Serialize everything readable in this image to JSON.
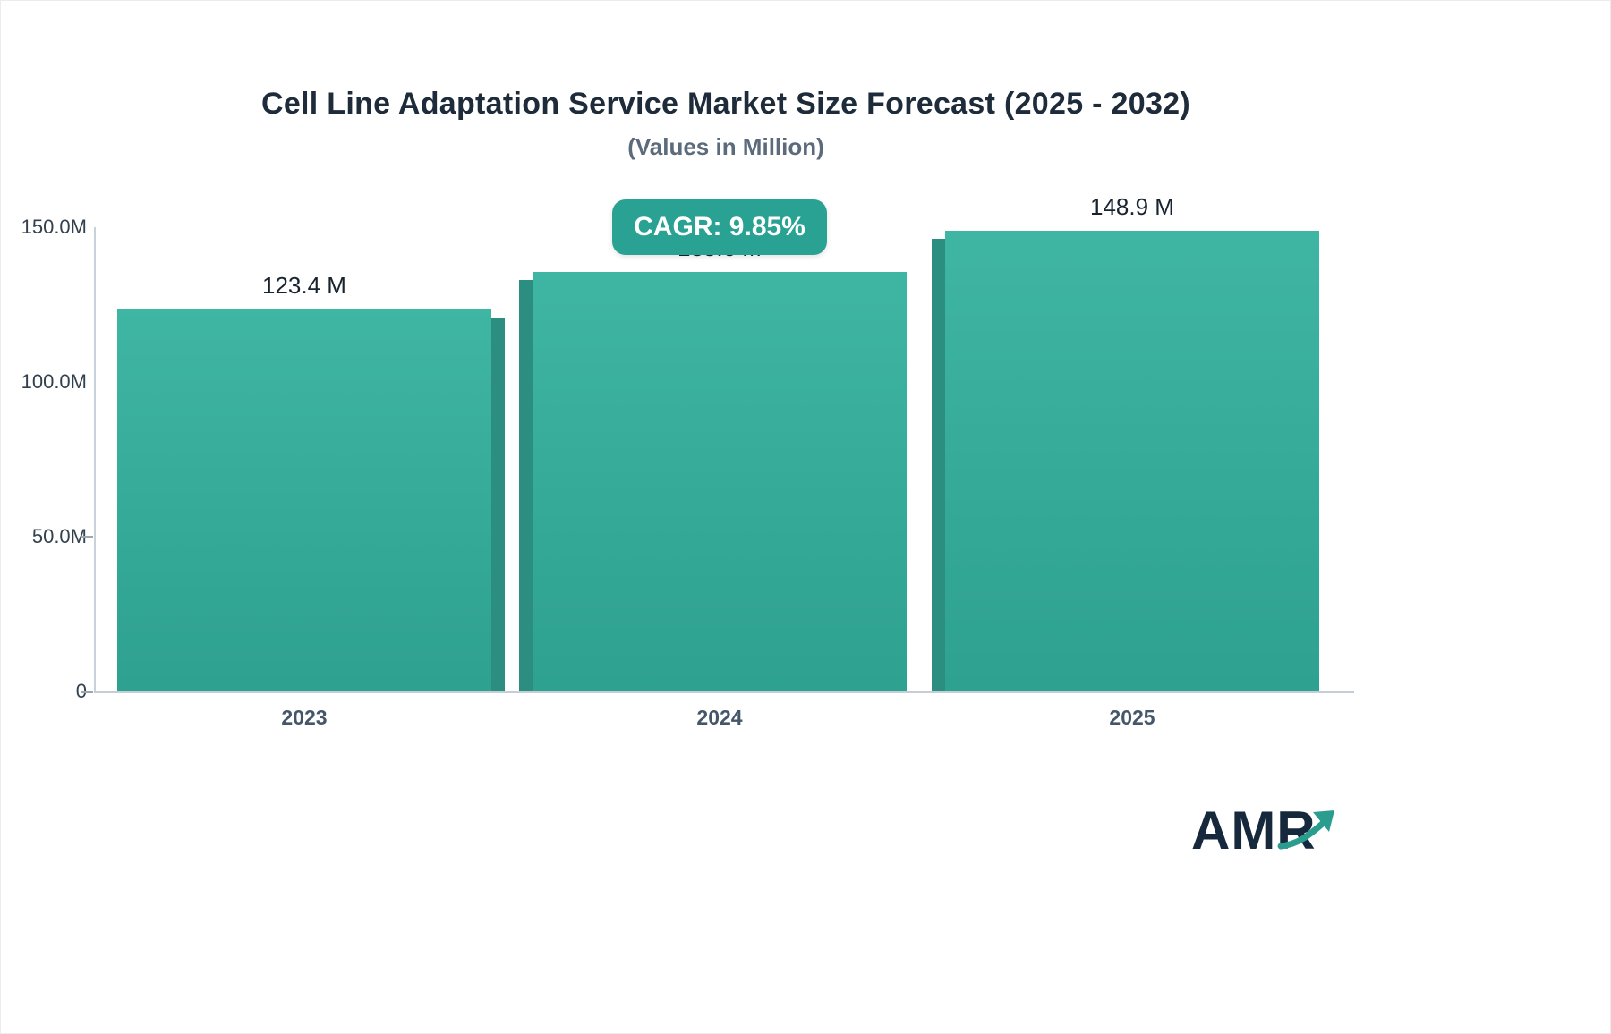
{
  "chart_data": {
    "type": "bar",
    "title": "Cell Line Adaptation Service Market Size Forecast (2025 - 2032)",
    "subtitle": "(Values in Million)",
    "categories": [
      "2023",
      "2024",
      "2025"
    ],
    "values": [
      123.4,
      135.6,
      148.9
    ],
    "value_labels": [
      "123.4 M",
      "135.6 M",
      "148.9 M"
    ],
    "ylim": [
      0,
      150
    ],
    "yticks": [
      {
        "label": "150.0M",
        "value": 150,
        "tick": false
      },
      {
        "label": "100.0M",
        "value": 100,
        "tick": false
      },
      {
        "label": "50.0M",
        "value": 50,
        "tick": true
      },
      {
        "label": "0",
        "value": 0,
        "tick": true
      }
    ],
    "grid": false,
    "legend": false,
    "bar_color_top": "#3fb5a3",
    "bar_color_bottom": "#2ea190",
    "bar_side_color": "#2b8e80",
    "cagr_badge": "CAGR: 9.85%",
    "badge_color": "#2aa293"
  },
  "logo": {
    "text": "AMR",
    "arrow_color": "#2a9d8f"
  }
}
